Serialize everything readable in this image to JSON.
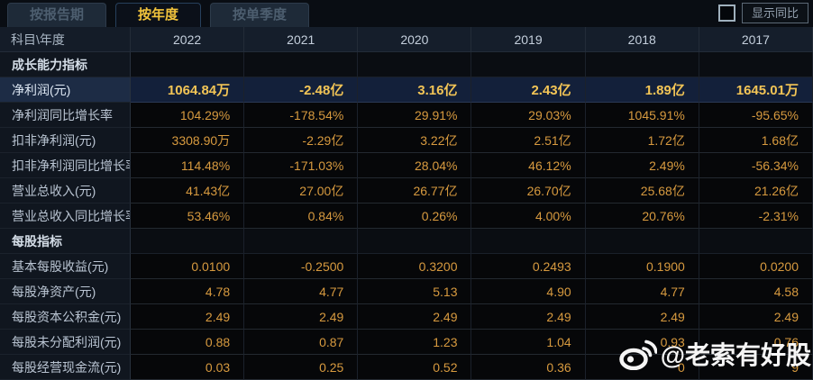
{
  "tabs": [
    {
      "label": "按报告期",
      "active": false
    },
    {
      "label": "按年度",
      "active": true
    },
    {
      "label": "按单季度",
      "active": false
    }
  ],
  "controls": {
    "show_yoy_label": "显示同比",
    "checkbox_checked": false
  },
  "table": {
    "corner_label": "科目\\年度",
    "years": [
      "2022",
      "2021",
      "2020",
      "2019",
      "2018",
      "2017"
    ],
    "more_icon": "»",
    "rows": [
      {
        "type": "section",
        "label": "成长能力指标"
      },
      {
        "type": "data",
        "label": "净利润(元)",
        "highlight": true,
        "values": [
          "1064.84万",
          "-2.48亿",
          "3.16亿",
          "2.43亿",
          "1.89亿",
          "1645.01万"
        ]
      },
      {
        "type": "data",
        "label": "净利润同比增长率",
        "values": [
          "104.29%",
          "-178.54%",
          "29.91%",
          "29.03%",
          "1045.91%",
          "-95.65%"
        ]
      },
      {
        "type": "data",
        "label": "扣非净利润(元)",
        "values": [
          "3308.90万",
          "-2.29亿",
          "3.22亿",
          "2.51亿",
          "1.72亿",
          "1.68亿"
        ]
      },
      {
        "type": "data",
        "label": "扣非净利润同比增长率",
        "values": [
          "114.48%",
          "-171.03%",
          "28.04%",
          "46.12%",
          "2.49%",
          "-56.34%"
        ]
      },
      {
        "type": "data",
        "label": "营业总收入(元)",
        "values": [
          "41.43亿",
          "27.00亿",
          "26.77亿",
          "26.70亿",
          "25.68亿",
          "21.26亿"
        ]
      },
      {
        "type": "data",
        "label": "营业总收入同比增长率",
        "values": [
          "53.46%",
          "0.84%",
          "0.26%",
          "4.00%",
          "20.76%",
          "-2.31%"
        ]
      },
      {
        "type": "section",
        "label": "每股指标"
      },
      {
        "type": "data",
        "label": "基本每股收益(元)",
        "values": [
          "0.0100",
          "-0.2500",
          "0.3200",
          "0.2493",
          "0.1900",
          "0.0200"
        ]
      },
      {
        "type": "data",
        "label": "每股净资产(元)",
        "values": [
          "4.78",
          "4.77",
          "5.13",
          "4.90",
          "4.77",
          "4.58"
        ]
      },
      {
        "type": "data",
        "label": "每股资本公积金(元)",
        "values": [
          "2.49",
          "2.49",
          "2.49",
          "2.49",
          "2.49",
          "2.49"
        ]
      },
      {
        "type": "data",
        "label": "每股未分配利润(元)",
        "values": [
          "0.88",
          "0.87",
          "1.23",
          "1.04",
          "0.93",
          "0.76"
        ]
      },
      {
        "type": "data",
        "label": "每股经营现金流(元)",
        "values": [
          "0.03",
          "0.25",
          "0.52",
          "0.36",
          "0",
          "9"
        ]
      }
    ]
  },
  "watermark": {
    "handle": "@老索有好股"
  },
  "colors": {
    "accent_gold": "#f2c43c",
    "value_orange": "#d79a3f",
    "highlight_value_gold": "#f3c556",
    "highlight_row_bg": "#13203a",
    "header_row_bg": "#151e2b",
    "label_cell_bg": "#10161f",
    "value_cell_bg": "#060709",
    "inactive_tab_bg": "#1e2a38",
    "page_bg": "#0a0d12"
  }
}
